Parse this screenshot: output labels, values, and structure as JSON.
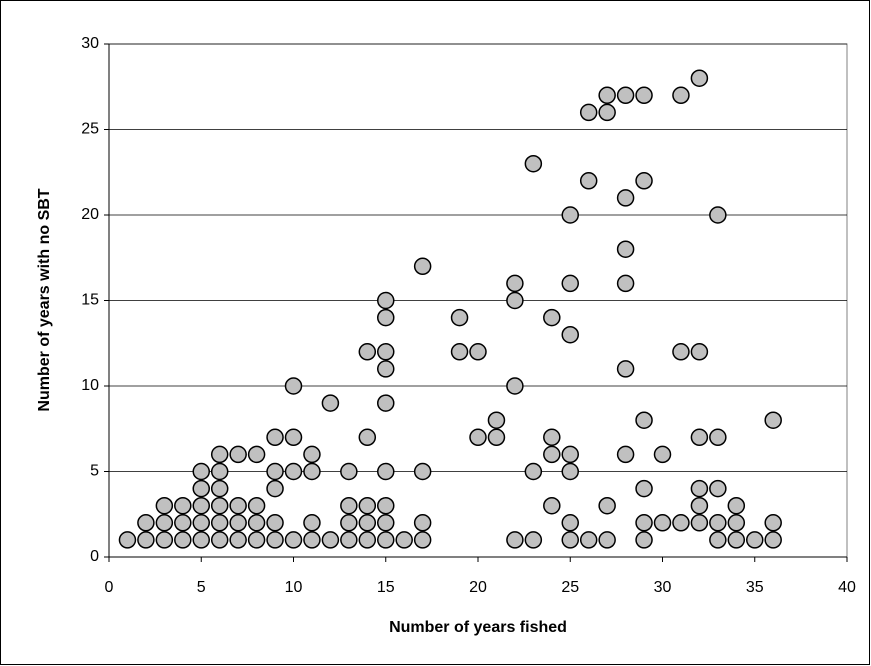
{
  "chart_data": {
    "type": "scatter",
    "xlabel": "Number of years fished",
    "ylabel": "Number of years with no SBT",
    "xlim": [
      0,
      40
    ],
    "xticks": [
      0,
      5,
      10,
      15,
      20,
      25,
      30,
      35,
      40
    ],
    "ylim": [
      0,
      30
    ],
    "yticks": [
      0,
      5,
      10,
      15,
      20,
      25,
      30
    ],
    "grid": true,
    "color": "#c0c0c0",
    "x": [
      1,
      2,
      3,
      4,
      5,
      6,
      7,
      8,
      9,
      10,
      11,
      12,
      13,
      14,
      15,
      16,
      17,
      22,
      23,
      25,
      26,
      27,
      29,
      33,
      34,
      35,
      36,
      2,
      3,
      4,
      5,
      6,
      7,
      8,
      9,
      11,
      13,
      14,
      15,
      17,
      25,
      29,
      30,
      31,
      32,
      33,
      34,
      36,
      3,
      4,
      5,
      6,
      7,
      8,
      13,
      14,
      15,
      24,
      27,
      32,
      34,
      5,
      6,
      9,
      29,
      32,
      33,
      5,
      6,
      9,
      10,
      11,
      13,
      15,
      17,
      23,
      25,
      6,
      7,
      8,
      11,
      24,
      25,
      28,
      30,
      9,
      10,
      14,
      20,
      21,
      24,
      32,
      33,
      21,
      29,
      36,
      12,
      15,
      10,
      22,
      15,
      28,
      14,
      15,
      19,
      20,
      31,
      32,
      25,
      15,
      19,
      24,
      15,
      22,
      22,
      25,
      28,
      17,
      28,
      25,
      33,
      28,
      26,
      29,
      23,
      26,
      27,
      27,
      28,
      29,
      31,
      32
    ],
    "y": [
      1,
      1,
      1,
      1,
      1,
      1,
      1,
      1,
      1,
      1,
      1,
      1,
      1,
      1,
      1,
      1,
      1,
      1,
      1,
      1,
      1,
      1,
      1,
      1,
      1,
      1,
      1,
      2,
      2,
      2,
      2,
      2,
      2,
      2,
      2,
      2,
      2,
      2,
      2,
      2,
      2,
      2,
      2,
      2,
      2,
      2,
      2,
      2,
      3,
      3,
      3,
      3,
      3,
      3,
      3,
      3,
      3,
      3,
      3,
      3,
      3,
      4,
      4,
      4,
      4,
      4,
      4,
      5,
      5,
      5,
      5,
      5,
      5,
      5,
      5,
      5,
      5,
      6,
      6,
      6,
      6,
      6,
      6,
      6,
      6,
      7,
      7,
      7,
      7,
      7,
      7,
      7,
      7,
      8,
      8,
      8,
      9,
      9,
      10,
      10,
      11,
      11,
      12,
      12,
      12,
      12,
      12,
      12,
      13,
      14,
      14,
      14,
      15,
      15,
      16,
      16,
      16,
      17,
      18,
      20,
      20,
      21,
      22,
      22,
      23,
      26,
      26,
      27,
      27,
      27,
      27,
      28
    ]
  }
}
